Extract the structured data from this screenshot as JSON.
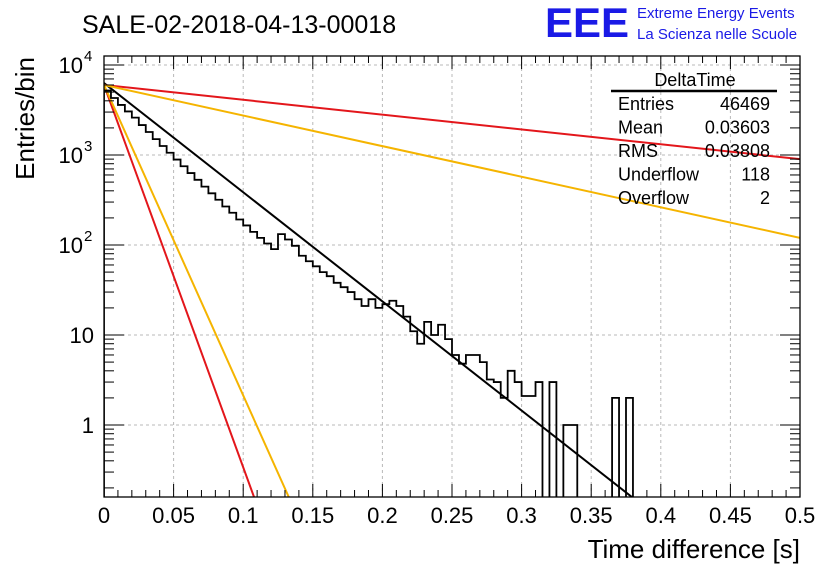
{
  "title": "SALE-02-2018-04-13-00018",
  "logo": {
    "mark": "EEE",
    "line1": "Extreme Energy Events",
    "line2": "La Scienza nelle Scuole",
    "color": "#1a1ae6"
  },
  "stats_box": {
    "title": "DeltaTime",
    "rows": [
      {
        "label": "Entries",
        "value": "46469"
      },
      {
        "label": "Mean",
        "value": "0.03603"
      },
      {
        "label": "RMS",
        "value": "0.03808"
      },
      {
        "label": "Underflow",
        "value": "118"
      },
      {
        "label": "Overflow",
        "value": "2"
      }
    ]
  },
  "chart_data": {
    "type": "line",
    "xlabel": "Time difference [s]",
    "ylabel": "Entries/bin",
    "xlim": [
      0,
      0.5
    ],
    "ylim_log10": [
      -0.8,
      4.1
    ],
    "log_y": true,
    "grid": true,
    "x_ticks": [
      "0",
      "0.05",
      "0.1",
      "0.15",
      "0.2",
      "0.25",
      "0.3",
      "0.35",
      "0.4",
      "0.45",
      "0.5"
    ],
    "y_ticks": [
      {
        "value": 1,
        "label": "1"
      },
      {
        "value": 10,
        "label": "10"
      },
      {
        "value": 100,
        "label": "10",
        "exp": "2"
      },
      {
        "value": 1000,
        "label": "10",
        "exp": "3"
      },
      {
        "value": 10000,
        "label": "10",
        "exp": "4"
      }
    ],
    "histogram": {
      "bin_width": 0.005,
      "color": "#000000",
      "values": [
        5200,
        4300,
        3600,
        3050,
        2600,
        2150,
        1800,
        1500,
        1260,
        1060,
        890,
        750,
        630,
        530,
        445,
        375,
        318,
        268,
        228,
        192,
        165,
        140,
        120,
        104,
        90,
        132,
        115,
        98,
        76,
        66,
        58,
        50,
        45,
        38,
        34,
        30,
        25,
        21,
        25,
        20,
        22,
        24,
        21,
        16,
        11,
        8,
        14,
        10,
        13,
        9,
        6,
        4.8,
        6,
        6,
        5,
        3.2,
        3,
        2,
        4,
        3,
        2.1,
        2.1,
        3,
        0.1,
        3,
        0.1,
        1,
        1,
        0.1,
        0.1,
        0.1,
        0.1,
        0.1,
        2,
        0.1,
        2,
        0.1,
        0.1,
        0.1,
        0.1,
        0.1,
        0.1,
        0.1,
        0.1,
        0.1,
        0.1,
        0.1,
        0.1,
        0.1,
        0.1,
        0.1,
        0.1,
        0.1,
        0.1,
        0.1,
        0.1,
        0.1,
        0.1,
        0.1,
        0.1
      ]
    },
    "fit_lines": [
      {
        "color": "#000000",
        "points": [
          [
            0,
            6300
          ],
          [
            0.38,
            0.155
          ]
        ]
      },
      {
        "color": "#e3161b",
        "points": [
          [
            0,
            6000
          ],
          [
            0.5,
            900
          ]
        ]
      },
      {
        "color": "#e3161b",
        "points": [
          [
            0,
            6000
          ],
          [
            0.108,
            0.155
          ]
        ]
      },
      {
        "color": "#f5b400",
        "points": [
          [
            0,
            6000
          ],
          [
            0.5,
            120
          ]
        ]
      },
      {
        "color": "#f5b400",
        "points": [
          [
            0,
            6000
          ],
          [
            0.133,
            0.155
          ]
        ]
      }
    ]
  }
}
